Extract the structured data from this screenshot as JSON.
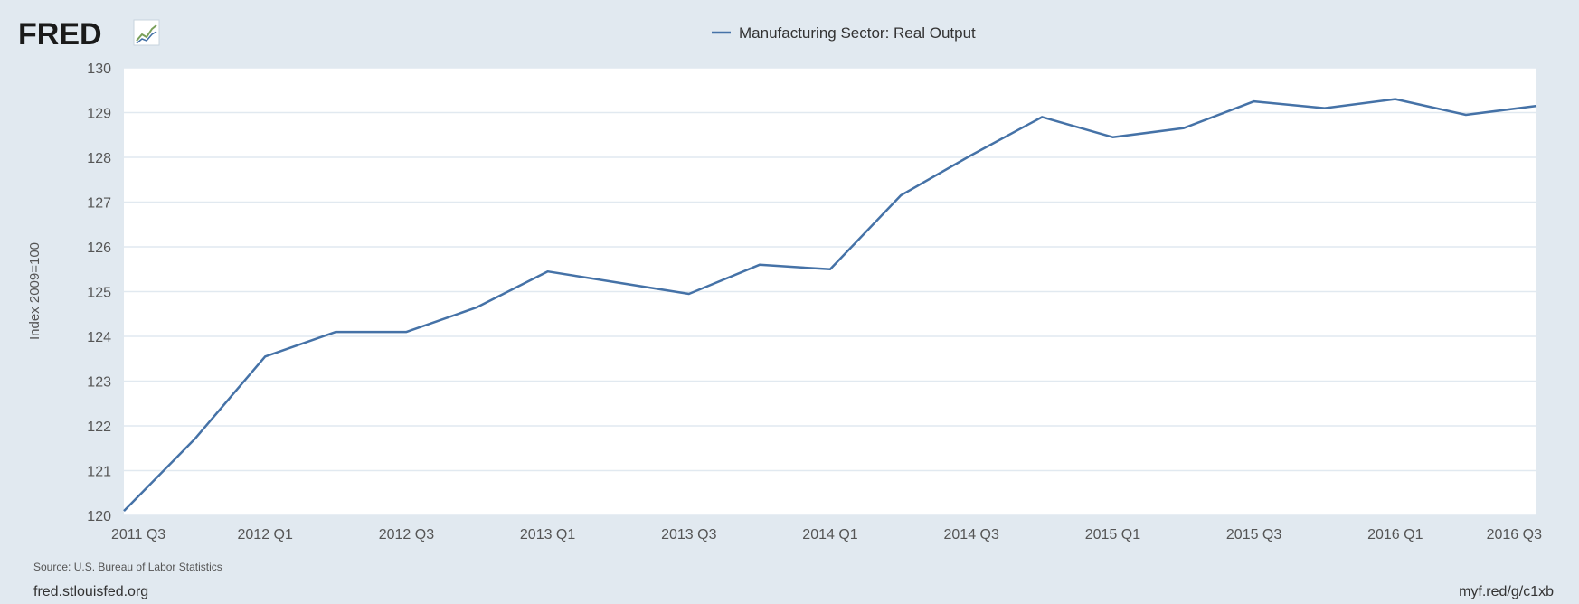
{
  "logo": {
    "text": "FRED"
  },
  "footer": {
    "source": "Source: U.S. Bureau of Labor Statistics",
    "site": "fred.stlouisfed.org",
    "short_link": "myf.red/g/c1xb"
  },
  "colors": {
    "background": "#e1e9f0",
    "plot_background": "#ffffff",
    "grid": "#e1e9f0",
    "series": "#4572a7"
  },
  "chart_data": {
    "type": "line",
    "title": "",
    "xlabel": "",
    "ylabel": "Index 2009=100",
    "legend": "top-center",
    "grid": true,
    "ylim": [
      120,
      130
    ],
    "yticks": [
      "120",
      "121",
      "122",
      "123",
      "124",
      "125",
      "126",
      "127",
      "128",
      "129",
      "130"
    ],
    "xticks": [
      "2011 Q3",
      "2012 Q1",
      "2012 Q3",
      "2013 Q1",
      "2013 Q3",
      "2014 Q1",
      "2014 Q3",
      "2015 Q1",
      "2015 Q3",
      "2016 Q1",
      "2016 Q3"
    ],
    "x": [
      "2011 Q3",
      "2011 Q4",
      "2012 Q1",
      "2012 Q2",
      "2012 Q3",
      "2012 Q4",
      "2013 Q1",
      "2013 Q2",
      "2013 Q3",
      "2013 Q4",
      "2014 Q1",
      "2014 Q2",
      "2014 Q3",
      "2014 Q4",
      "2015 Q1",
      "2015 Q2",
      "2015 Q3",
      "2015 Q4",
      "2016 Q1",
      "2016 Q2",
      "2016 Q3"
    ],
    "series": [
      {
        "name": "Manufacturing Sector: Real Output",
        "values": [
          120.1,
          121.7,
          123.55,
          124.1,
          124.1,
          124.65,
          125.45,
          125.2,
          124.95,
          125.6,
          125.5,
          127.15,
          128.05,
          128.9,
          128.45,
          128.65,
          129.25,
          129.1,
          129.3,
          128.95,
          129.15
        ]
      }
    ]
  }
}
